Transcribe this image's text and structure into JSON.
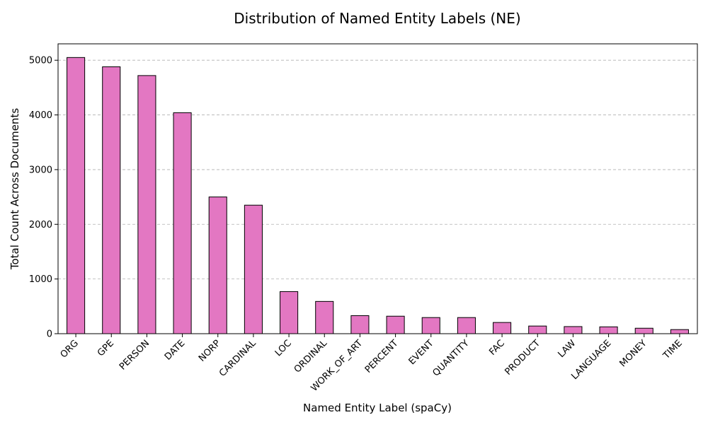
{
  "chart_data": {
    "type": "bar",
    "title": "Distribution of Named Entity Labels (NE)",
    "xlabel": "Named Entity Label (spaCy)",
    "ylabel": "Total Count Across Documents",
    "categories": [
      "ORG",
      "GPE",
      "PERSON",
      "DATE",
      "NORP",
      "CARDINAL",
      "LOC",
      "ORDINAL",
      "WORK_OF_ART",
      "PERCENT",
      "EVENT",
      "QUANTITY",
      "FAC",
      "PRODUCT",
      "LAW",
      "LANGUAGE",
      "MONEY",
      "TIME"
    ],
    "values": [
      5050,
      4880,
      4720,
      4040,
      2500,
      2350,
      770,
      590,
      330,
      320,
      295,
      295,
      205,
      140,
      130,
      125,
      100,
      75
    ],
    "ylim": [
      0,
      5300
    ],
    "yticks": [
      0,
      1000,
      2000,
      3000,
      4000,
      5000
    ],
    "grid": "y-dashed",
    "bar_color": "#e377c2",
    "edge_color": "#000000",
    "x_tick_rotation": 45
  }
}
